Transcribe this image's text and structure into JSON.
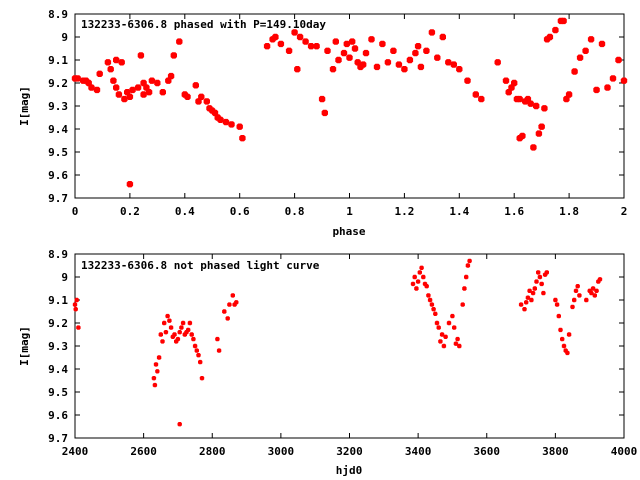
{
  "chart_data": [
    {
      "type": "scatter",
      "title": "132233-6306.8 phased with P=149.10day",
      "xlabel": "phase",
      "ylabel": "I[mag]",
      "xlim": [
        0,
        2
      ],
      "ylim": [
        9.7,
        8.9
      ],
      "y_inverted": true,
      "xticks": [
        "0",
        "0.2",
        "0.4",
        "0.6",
        "0.8",
        "1",
        "1.2",
        "1.4",
        "1.6",
        "1.8",
        "2"
      ],
      "yticks": [
        "8.9",
        "9",
        "9.1",
        "9.2",
        "9.3",
        "9.4",
        "9.5",
        "9.6",
        "9.7"
      ],
      "grid": false,
      "marker_color": "#ff0000",
      "series": [
        {
          "x": [
            0.0,
            0.01,
            0.03,
            0.04,
            0.05,
            0.06,
            0.08,
            0.09,
            0.12,
            0.13,
            0.14,
            0.15,
            0.16,
            0.17,
            0.18,
            0.19,
            0.2,
            0.21,
            0.23,
            0.24,
            0.25,
            0.26,
            0.27,
            0.28,
            0.3,
            0.32,
            0.34,
            0.36,
            0.38,
            0.4,
            0.41,
            0.44,
            0.46,
            0.48,
            0.49,
            0.5,
            0.51,
            0.52,
            0.53,
            0.55,
            0.57,
            0.6,
            0.61,
            0.7,
            0.72,
            0.73,
            0.75,
            0.78,
            0.8,
            0.81,
            0.82,
            0.84,
            0.86,
            0.88,
            0.9,
            0.91,
            0.92,
            0.94,
            0.96,
            0.98,
            0.99,
            1.0,
            1.01,
            1.02,
            1.03,
            1.04,
            1.06,
            1.08,
            1.1,
            1.12,
            1.14,
            1.16,
            1.18,
            1.2,
            1.22,
            1.24,
            1.26,
            1.28,
            1.3,
            1.32,
            1.34,
            1.36,
            1.38,
            1.4,
            1.43,
            1.46,
            1.48,
            1.54,
            1.57,
            1.58,
            1.59,
            1.6,
            1.61,
            1.62,
            1.63,
            1.64,
            1.66,
            1.67,
            1.68,
            1.69,
            1.7,
            1.71,
            1.72,
            1.73,
            1.75,
            1.77,
            1.78,
            1.79,
            1.8,
            1.82,
            1.84,
            1.86,
            1.88,
            1.9,
            1.92,
            1.94,
            1.96,
            1.98,
            2.0,
            0.2,
            0.15,
            0.25,
            0.35,
            0.45,
            1.65,
            1.62,
            1.05,
            1.25,
            0.95
          ],
          "y": [
            9.18,
            9.18,
            9.19,
            9.19,
            9.2,
            9.22,
            9.23,
            9.16,
            9.11,
            9.14,
            9.19,
            9.22,
            9.25,
            9.11,
            9.27,
            9.24,
            9.26,
            9.23,
            9.22,
            9.08,
            9.25,
            9.22,
            9.24,
            9.19,
            9.2,
            9.24,
            9.19,
            9.08,
            9.02,
            9.25,
            9.26,
            9.21,
            9.26,
            9.28,
            9.31,
            9.32,
            9.33,
            9.35,
            9.36,
            9.37,
            9.38,
            9.39,
            9.44,
            9.04,
            9.01,
            9.0,
            9.03,
            9.06,
            8.98,
            9.14,
            9.0,
            9.02,
            9.04,
            9.04,
            9.27,
            9.33,
            9.06,
            9.14,
            9.1,
            9.07,
            9.03,
            9.09,
            9.02,
            9.05,
            9.11,
            9.13,
            9.07,
            9.01,
            9.13,
            9.03,
            9.11,
            9.06,
            9.12,
            9.14,
            9.1,
            9.07,
            9.13,
            9.06,
            8.98,
            9.09,
            9.0,
            9.11,
            9.12,
            9.14,
            9.19,
            9.25,
            9.27,
            9.11,
            9.19,
            9.24,
            9.22,
            9.2,
            9.27,
            9.27,
            9.43,
            9.28,
            9.29,
            9.48,
            9.3,
            9.42,
            9.39,
            9.31,
            9.01,
            9.0,
            8.97,
            8.93,
            8.93,
            9.27,
            9.25,
            9.15,
            9.09,
            9.06,
            9.01,
            9.23,
            9.03,
            9.22,
            9.18,
            9.1,
            9.19,
            9.64,
            9.1,
            9.2,
            9.17,
            9.28,
            9.27,
            9.44,
            9.12,
            9.04,
            9.02
          ]
        }
      ]
    },
    {
      "type": "scatter",
      "title": "132233-6306.8 not phased light curve",
      "xlabel": "hjd0",
      "ylabel": "I[mag]",
      "xlim": [
        2400,
        4000
      ],
      "ylim": [
        9.7,
        8.9
      ],
      "y_inverted": true,
      "xticks": [
        "2400",
        "2600",
        "2800",
        "3000",
        "3200",
        "3400",
        "3600",
        "3800",
        "4000"
      ],
      "yticks": [
        "8.9",
        "9",
        "9.1",
        "9.2",
        "9.3",
        "9.4",
        "9.5",
        "9.6",
        "9.7"
      ],
      "grid": false,
      "marker_color": "#ff0000",
      "series": [
        {
          "x": [
            2400,
            2402,
            2405,
            2410,
            2630,
            2633,
            2636,
            2640,
            2645,
            2650,
            2655,
            2660,
            2665,
            2670,
            2675,
            2680,
            2685,
            2690,
            2695,
            2700,
            2705,
            2710,
            2715,
            2720,
            2725,
            2730,
            2735,
            2740,
            2745,
            2750,
            2755,
            2760,
            2765,
            2770,
            2705,
            2815,
            2820,
            2835,
            2845,
            2850,
            2860,
            2865,
            2870,
            3385,
            3390,
            3395,
            3400,
            3405,
            3410,
            3415,
            3420,
            3425,
            3430,
            3435,
            3440,
            3445,
            3450,
            3455,
            3460,
            3465,
            3470,
            3475,
            3480,
            3490,
            3500,
            3505,
            3510,
            3515,
            3520,
            3530,
            3535,
            3540,
            3545,
            3550,
            3700,
            3710,
            3715,
            3720,
            3725,
            3730,
            3735,
            3740,
            3745,
            3750,
            3755,
            3760,
            3765,
            3770,
            3775,
            3800,
            3805,
            3810,
            3815,
            3820,
            3825,
            3830,
            3835,
            3840,
            3850,
            3855,
            3860,
            3865,
            3870,
            3890,
            3900,
            3905,
            3910,
            3915,
            3920,
            3925,
            3930
          ],
          "y": [
            9.12,
            9.14,
            9.1,
            9.22,
            9.44,
            9.47,
            9.38,
            9.41,
            9.35,
            9.25,
            9.28,
            9.2,
            9.24,
            9.17,
            9.19,
            9.22,
            9.26,
            9.25,
            9.28,
            9.27,
            9.24,
            9.22,
            9.2,
            9.25,
            9.24,
            9.23,
            9.2,
            9.25,
            9.27,
            9.3,
            9.32,
            9.34,
            9.37,
            9.44,
            9.64,
            9.27,
            9.32,
            9.15,
            9.18,
            9.12,
            9.08,
            9.12,
            9.11,
            9.03,
            9.0,
            9.05,
            9.02,
            8.98,
            8.96,
            9.0,
            9.03,
            9.04,
            9.08,
            9.1,
            9.12,
            9.14,
            9.16,
            9.2,
            9.22,
            9.28,
            9.25,
            9.3,
            9.26,
            9.2,
            9.17,
            9.22,
            9.29,
            9.27,
            9.3,
            9.12,
            9.05,
            9.0,
            8.95,
            8.93,
            9.12,
            9.14,
            9.11,
            9.09,
            9.06,
            9.1,
            9.07,
            9.05,
            9.02,
            8.98,
            9.0,
            9.03,
            9.07,
            8.99,
            8.98,
            9.1,
            9.12,
            9.17,
            9.23,
            9.27,
            9.3,
            9.32,
            9.33,
            9.25,
            9.13,
            9.1,
            9.06,
            9.04,
            9.08,
            9.1,
            9.06,
            9.07,
            9.05,
            9.08,
            9.06,
            9.02,
            9.01
          ]
        }
      ]
    }
  ]
}
